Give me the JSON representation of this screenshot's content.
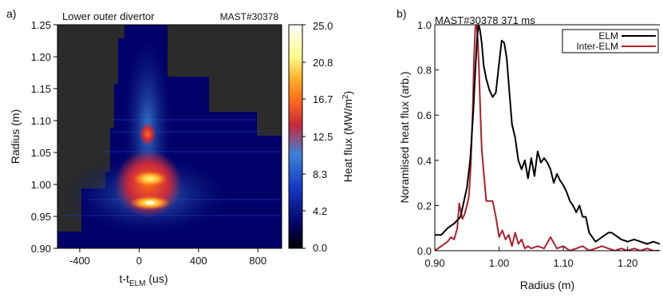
{
  "chart_data": [
    {
      "type": "heatmap",
      "panel_label": "a)",
      "title_left": "Lower outer divertor",
      "title_right": "MAST#30378",
      "xlabel_main": "t-t",
      "xlabel_sub": "ELM",
      "xlabel_unit": " (us)",
      "ylabel": "Radius (m)",
      "xlim": [
        -550,
        960
      ],
      "ylim": [
        0.9,
        1.25
      ],
      "xticks": [
        -400,
        0,
        400,
        800
      ],
      "yticks": [
        "0.90",
        "0.95",
        "1.00",
        "1.05",
        "1.10",
        "1.15",
        "1.20",
        "1.25"
      ],
      "colorbar": {
        "label_main": "Heat flux (MW/m",
        "label_sup": "2",
        "label_end": ")",
        "ticks": [
          "25.0",
          "20.8",
          "16.7",
          "12.5",
          "8.3",
          "4.2",
          "0.0"
        ],
        "range": [
          0,
          25
        ],
        "colors": [
          "#000000",
          "#000060",
          "#1a3cc8",
          "#3c82d8",
          "#c8283c",
          "#ff6a1a",
          "#ffb02a",
          "#ffff8c",
          "#ffffff"
        ]
      },
      "background_color": "#2b2b2b",
      "features": [
        {
          "name": "peak",
          "t": 80,
          "r": 0.975,
          "value": 25
        },
        {
          "name": "peak",
          "t": 80,
          "r": 1.013,
          "value": 22
        }
      ]
    },
    {
      "type": "line",
      "panel_label": "b)",
      "title": "MAST#30378 371 ms",
      "xlabel": "Radius (m)",
      "ylabel": "Noramlised heat flux (arb.)",
      "xlim": [
        0.9,
        1.25
      ],
      "ylim": [
        0,
        1
      ],
      "xticks": [
        "0.90",
        "1.00",
        "1.10",
        "1.20"
      ],
      "yticks": [
        "0.0",
        "0.2",
        "0.4",
        "0.6",
        "0.8",
        "1.0"
      ],
      "legend_position": "top-right",
      "series": [
        {
          "name": "ELM",
          "color": "#000000",
          "x": [
            0.9,
            0.91,
            0.92,
            0.93,
            0.94,
            0.95,
            0.955,
            0.96,
            0.963,
            0.966,
            0.968,
            0.97,
            0.973,
            0.976,
            0.98,
            0.985,
            0.99,
            0.995,
            1.0,
            1.004,
            1.008,
            1.012,
            1.016,
            1.02,
            1.025,
            1.03,
            1.035,
            1.04,
            1.045,
            1.05,
            1.055,
            1.06,
            1.065,
            1.07,
            1.075,
            1.08,
            1.085,
            1.09,
            1.095,
            1.1,
            1.105,
            1.11,
            1.115,
            1.12,
            1.125,
            1.13,
            1.135,
            1.14,
            1.145,
            1.15,
            1.155,
            1.16,
            1.165,
            1.17,
            1.175,
            1.18,
            1.185,
            1.19,
            1.2,
            1.21,
            1.22,
            1.23,
            1.24,
            1.25
          ],
          "values": [
            0.07,
            0.07,
            0.1,
            0.12,
            0.15,
            0.28,
            0.4,
            0.62,
            0.8,
            0.95,
            1.0,
            0.98,
            0.92,
            0.82,
            0.76,
            0.71,
            0.68,
            0.7,
            0.83,
            0.93,
            0.92,
            0.85,
            0.7,
            0.56,
            0.5,
            0.4,
            0.36,
            0.4,
            0.32,
            0.41,
            0.33,
            0.44,
            0.39,
            0.41,
            0.39,
            0.36,
            0.3,
            0.34,
            0.31,
            0.29,
            0.26,
            0.22,
            0.2,
            0.17,
            0.2,
            0.15,
            0.15,
            0.08,
            0.06,
            0.04,
            0.05,
            0.06,
            0.07,
            0.08,
            0.08,
            0.07,
            0.06,
            0.05,
            0.04,
            0.05,
            0.04,
            0.03,
            0.04,
            0.03
          ]
        },
        {
          "name": "Inter-ELM",
          "color": "#b0202a",
          "x": [
            0.9,
            0.91,
            0.92,
            0.925,
            0.93,
            0.935,
            0.938,
            0.94,
            0.943,
            0.946,
            0.95,
            0.953,
            0.956,
            0.959,
            0.961,
            0.963,
            0.965,
            0.967,
            0.969,
            0.971,
            0.973,
            0.976,
            0.98,
            0.985,
            0.99,
            0.995,
            1.0,
            1.005,
            1.01,
            1.015,
            1.02,
            1.025,
            1.03,
            1.035,
            1.04,
            1.045,
            1.05,
            1.06,
            1.07,
            1.08,
            1.09,
            1.1,
            1.11,
            1.12,
            1.13,
            1.14,
            1.15,
            1.16,
            1.17,
            1.18,
            1.19,
            1.2,
            1.21,
            1.22,
            1.23,
            1.24,
            1.25
          ],
          "values": [
            0.0,
            0.02,
            0.04,
            0.06,
            0.05,
            0.1,
            0.21,
            0.18,
            0.14,
            0.16,
            0.2,
            0.24,
            0.38,
            0.62,
            0.85,
            0.99,
            1.0,
            0.93,
            0.78,
            0.6,
            0.45,
            0.35,
            0.22,
            0.22,
            0.22,
            0.15,
            0.06,
            0.09,
            0.05,
            0.07,
            0.02,
            0.08,
            0.03,
            0.05,
            0.01,
            0.02,
            0.01,
            0.02,
            0.01,
            0.06,
            0.01,
            0.02,
            0.0,
            0.01,
            0.02,
            0.0,
            0.01,
            0.02,
            0.01,
            0.0,
            0.01,
            0.0,
            0.01,
            0.0,
            0.01,
            0.0,
            0.0
          ]
        }
      ]
    }
  ]
}
